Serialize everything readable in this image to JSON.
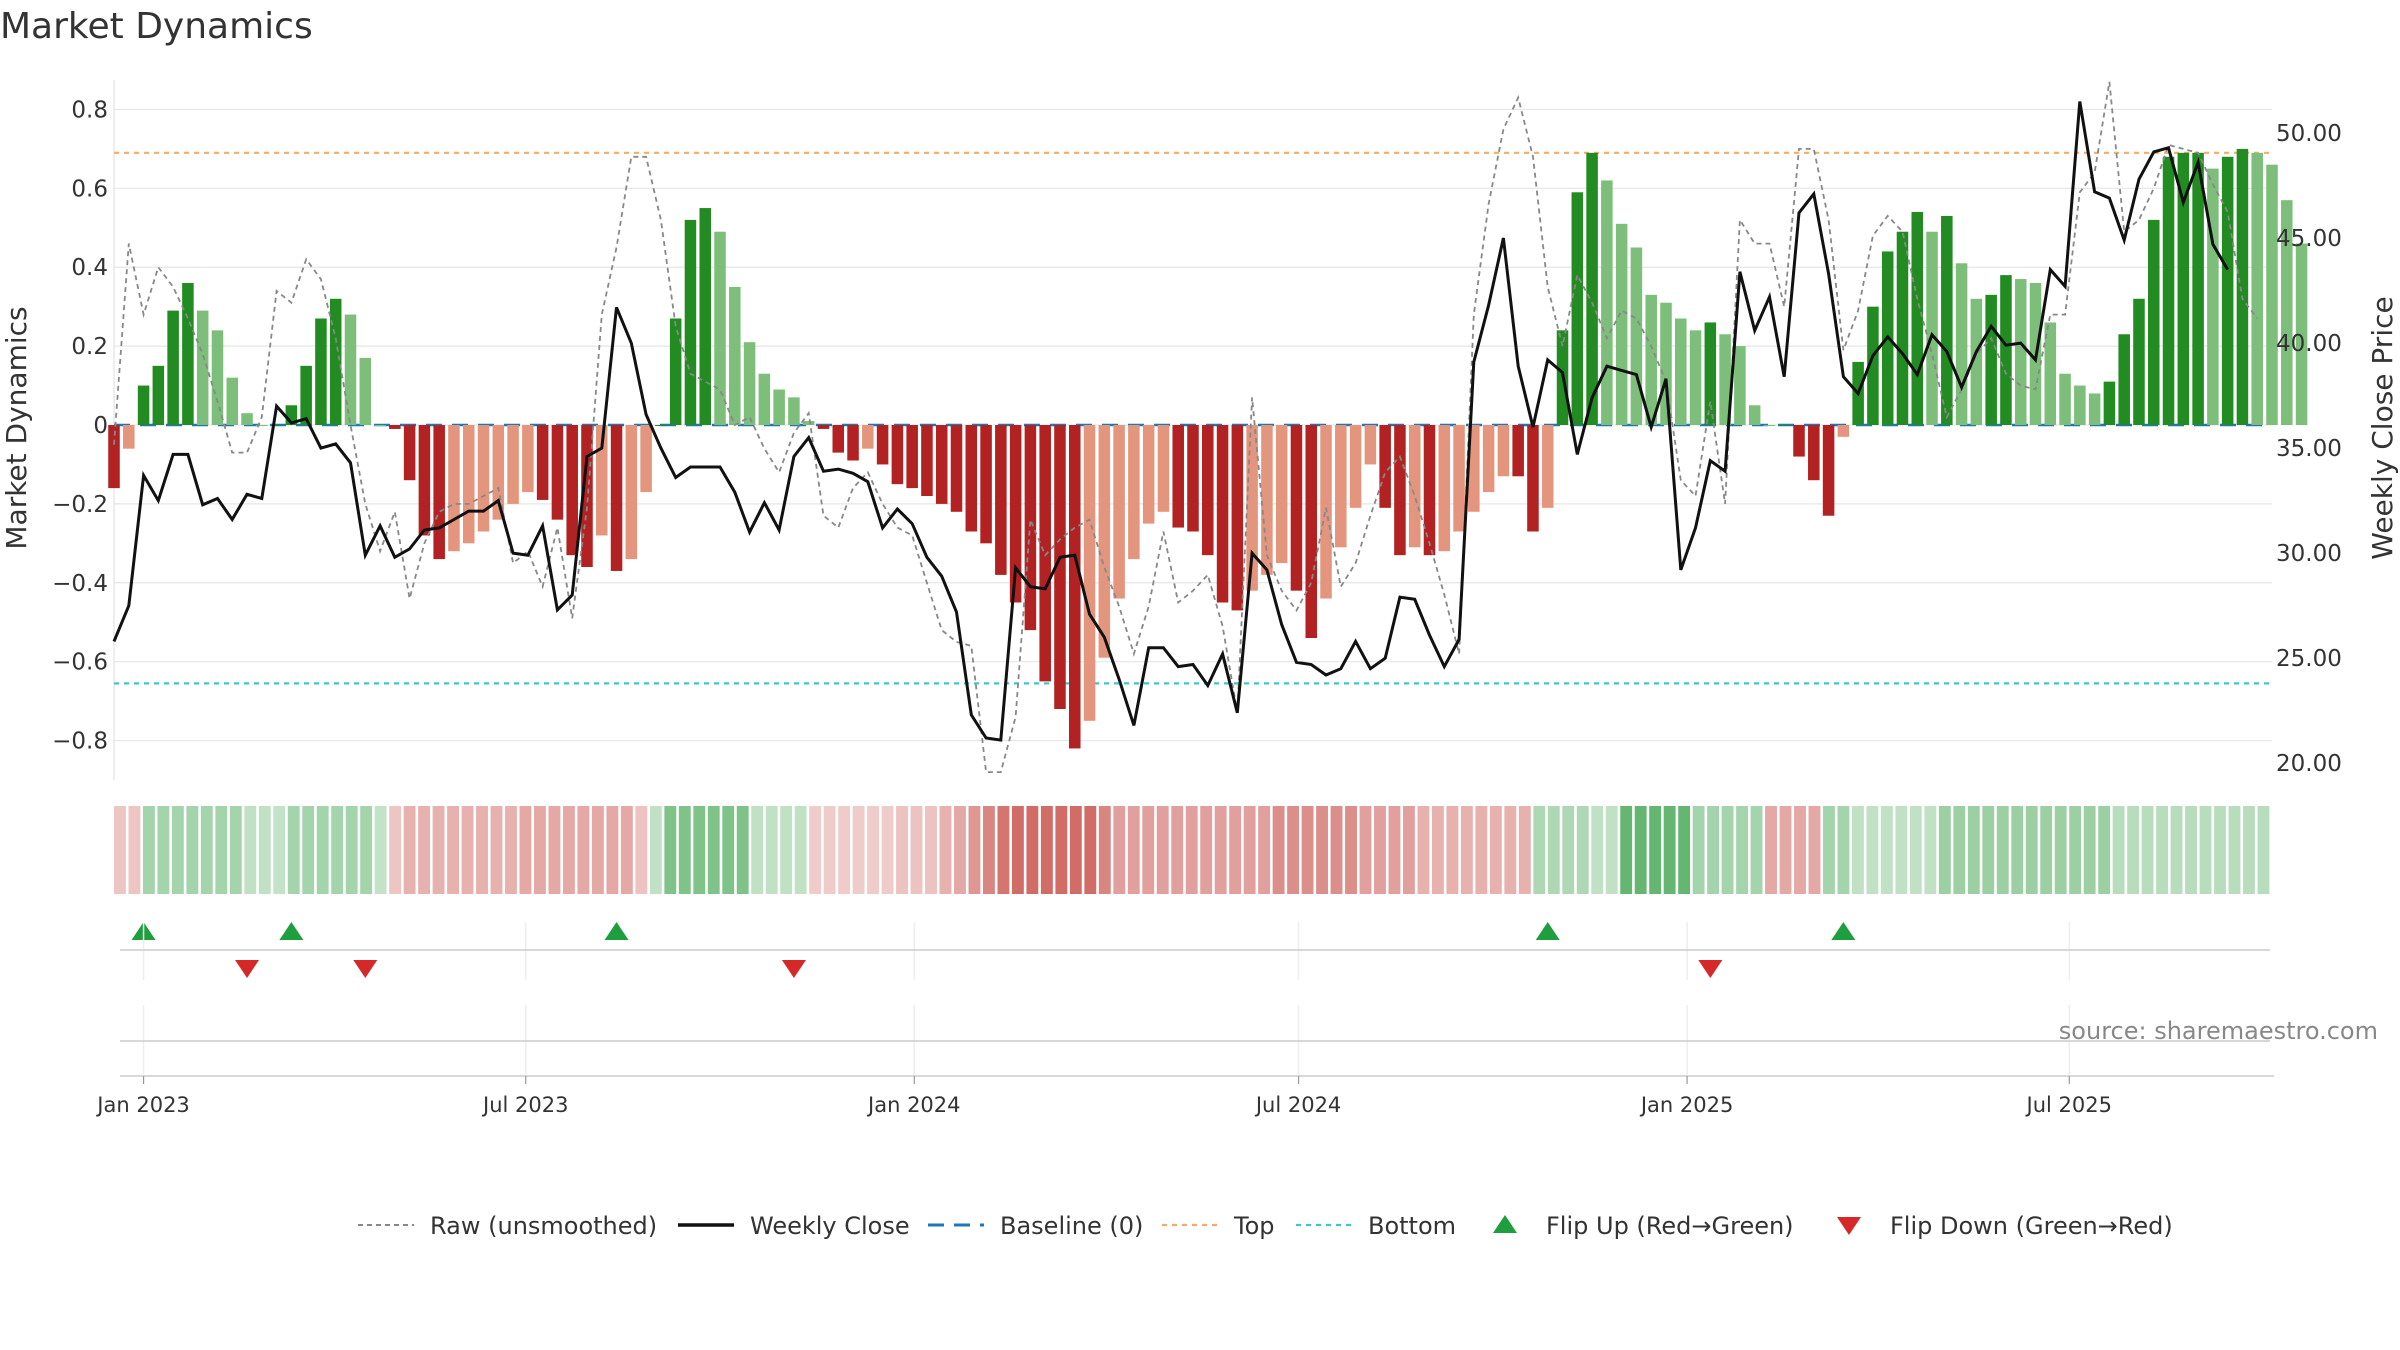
{
  "title": "Market Dynamics",
  "source": "source: sharemaestro.com",
  "chart_data": {
    "type": "bar",
    "title": "Market Dynamics",
    "y_left": {
      "label": "Market Dynamics",
      "range": [
        -0.9,
        0.9
      ],
      "ticks": [
        0.8,
        0.6,
        0.4,
        0.2,
        0,
        -0.2,
        -0.4,
        -0.6,
        -0.8
      ],
      "tick_labels": [
        "0.8",
        "0.6",
        "0.4",
        "0.2",
        "0",
        "−0.2",
        "−0.4",
        "−0.6",
        "−0.8"
      ]
    },
    "y_right": {
      "label": "Weekly Close Price",
      "range": [
        19.2,
        53.0
      ],
      "ticks": [
        50,
        45,
        40,
        35,
        30,
        25,
        20
      ],
      "tick_labels": [
        "50.00",
        "45.00",
        "40.00",
        "35.00",
        "30.00",
        "25.00",
        "20.00"
      ]
    },
    "x_ticks": [
      {
        "date": "2023-01-01",
        "label": "Jan 2023"
      },
      {
        "date": "2023-07-01",
        "label": "Jul 2023"
      },
      {
        "date": "2024-01-01",
        "label": "Jan 2024"
      },
      {
        "date": "2024-07-01",
        "label": "Jul 2024"
      },
      {
        "date": "2025-01-01",
        "label": "Jan 2025"
      },
      {
        "date": "2025-07-01",
        "label": "Jul 2025"
      }
    ],
    "x_range": [
      "2022-12-18",
      "2025-10-05"
    ],
    "start_date": "2022-12-18",
    "week_step_days": 7,
    "dynamics": [
      -0.16,
      -0.06,
      0.1,
      0.15,
      0.29,
      0.36,
      0.29,
      0.24,
      0.12,
      0.03,
      0.0,
      0.0,
      0.05,
      0.15,
      0.27,
      0.32,
      0.28,
      0.17,
      0.0,
      -0.01,
      -0.14,
      -0.28,
      -0.34,
      -0.32,
      -0.3,
      -0.27,
      -0.24,
      -0.2,
      -0.17,
      -0.19,
      -0.24,
      -0.33,
      -0.36,
      -0.28,
      -0.37,
      -0.34,
      -0.17,
      0.0,
      0.27,
      0.52,
      0.55,
      0.49,
      0.35,
      0.21,
      0.13,
      0.09,
      0.07,
      0.01,
      -0.01,
      -0.07,
      -0.09,
      -0.06,
      -0.1,
      -0.15,
      -0.16,
      -0.18,
      -0.2,
      -0.22,
      -0.27,
      -0.3,
      -0.38,
      -0.45,
      -0.52,
      -0.65,
      -0.72,
      -0.82,
      -0.75,
      -0.59,
      -0.44,
      -0.34,
      -0.25,
      -0.22,
      -0.26,
      -0.27,
      -0.33,
      -0.45,
      -0.47,
      -0.42,
      -0.38,
      -0.35,
      -0.42,
      -0.54,
      -0.44,
      -0.31,
      -0.21,
      -0.1,
      -0.21,
      -0.33,
      -0.31,
      -0.33,
      -0.32,
      -0.27,
      -0.22,
      -0.17,
      -0.13,
      -0.13,
      -0.27,
      -0.21,
      0.24,
      0.59,
      0.69,
      0.62,
      0.51,
      0.45,
      0.33,
      0.31,
      0.27,
      0.24,
      0.26,
      0.23,
      0.2,
      0.05,
      0.0,
      0.0,
      -0.08,
      -0.14,
      -0.23,
      -0.03,
      0.16,
      0.3,
      0.44,
      0.49,
      0.54,
      0.49,
      0.53,
      0.41,
      0.32,
      0.33,
      0.38,
      0.37,
      0.36,
      0.26,
      0.13,
      0.1,
      0.08,
      0.11,
      0.23,
      0.32,
      0.52,
      0.68,
      0.69,
      0.69,
      0.65,
      0.68,
      0.7,
      0.69,
      0.66,
      0.57,
      0.46
    ],
    "raw": [
      -0.05,
      0.46,
      0.28,
      0.4,
      0.35,
      0.27,
      0.18,
      0.06,
      -0.07,
      -0.07,
      0.02,
      0.34,
      0.31,
      0.42,
      0.37,
      0.22,
      0.0,
      -0.2,
      -0.32,
      -0.22,
      -0.44,
      -0.3,
      -0.22,
      -0.2,
      -0.2,
      -0.18,
      -0.16,
      -0.35,
      -0.32,
      -0.41,
      -0.26,
      -0.49,
      -0.21,
      0.28,
      0.45,
      0.68,
      0.68,
      0.52,
      0.25,
      0.13,
      0.11,
      0.09,
      0.0,
      0.02,
      -0.06,
      -0.12,
      -0.02,
      0.03,
      -0.23,
      -0.26,
      -0.16,
      -0.12,
      -0.2,
      -0.26,
      -0.28,
      -0.4,
      -0.52,
      -0.55,
      -0.56,
      -0.88,
      -0.88,
      -0.74,
      -0.24,
      -0.33,
      -0.29,
      -0.26,
      -0.24,
      -0.36,
      -0.46,
      -0.58,
      -0.46,
      -0.27,
      -0.45,
      -0.42,
      -0.38,
      -0.51,
      -0.73,
      0.07,
      -0.33,
      -0.42,
      -0.47,
      -0.4,
      -0.21,
      -0.41,
      -0.35,
      -0.23,
      -0.12,
      -0.08,
      -0.18,
      -0.3,
      -0.43,
      -0.58,
      0.28,
      0.56,
      0.75,
      0.83,
      0.68,
      0.35,
      0.2,
      0.38,
      0.31,
      0.22,
      0.29,
      0.27,
      0.2,
      0.11,
      -0.14,
      -0.18,
      0.06,
      -0.2,
      0.52,
      0.46,
      0.46,
      0.3,
      0.7,
      0.7,
      0.52,
      0.19,
      0.29,
      0.48,
      0.53,
      0.49,
      0.32,
      0.18,
      0.02,
      0.09,
      0.18,
      0.22,
      0.13,
      0.1,
      0.09,
      0.28,
      0.28,
      0.59,
      0.64,
      0.87,
      0.49,
      0.52,
      0.6,
      0.71,
      0.7,
      0.69,
      0.61,
      0.54,
      0.32,
      0.27
    ],
    "weekly_close": [
      25.8,
      27.5,
      33.7,
      32.5,
      34.7,
      34.7,
      32.3,
      32.6,
      31.6,
      32.8,
      32.6,
      37.0,
      36.2,
      36.4,
      35.0,
      35.2,
      34.3,
      29.9,
      31.3,
      29.8,
      30.2,
      31.1,
      31.2,
      31.6,
      32.0,
      32.0,
      32.5,
      30.0,
      29.9,
      31.3,
      27.3,
      28.0,
      34.6,
      35.0,
      41.7,
      40.0,
      36.6,
      35.0,
      33.6,
      34.1,
      34.1,
      34.1,
      32.9,
      31.0,
      32.4,
      31.1,
      34.6,
      35.5,
      33.9,
      34.0,
      33.8,
      33.4,
      31.2,
      32.1,
      31.4,
      29.8,
      28.9,
      27.2,
      22.3,
      21.2,
      21.1,
      29.3,
      28.4,
      28.3,
      29.8,
      29.9,
      27.1,
      26.0,
      24.0,
      21.8,
      25.5,
      25.5,
      24.6,
      24.7,
      23.7,
      25.2,
      22.4,
      30.0,
      29.2,
      26.6,
      24.8,
      24.7,
      24.2,
      24.5,
      25.8,
      24.5,
      25.0,
      27.9,
      27.8,
      26.1,
      24.6,
      25.9,
      39.1,
      41.8,
      45.0,
      38.9,
      36.0,
      39.2,
      38.6,
      34.7,
      37.4,
      38.9,
      38.7,
      38.5,
      36.0,
      38.3,
      29.2,
      31.2,
      34.4,
      33.9,
      43.4,
      40.6,
      42.2,
      38.4,
      46.2,
      47.1,
      43.3,
      38.4,
      37.6,
      39.4,
      40.3,
      39.5,
      38.5,
      40.4,
      39.6,
      37.9,
      39.6,
      40.8,
      39.9,
      40.0,
      39.2,
      43.5,
      42.7,
      51.5,
      47.2,
      46.9,
      44.9,
      47.8,
      49.1,
      49.3,
      46.7,
      48.6,
      44.7,
      43.5
    ],
    "top_level": 0.69,
    "bottom_level": -0.655,
    "baseline": 0,
    "regime_strip_alpha": [
      0.33,
      0.33,
      0.5,
      0.5,
      0.5,
      0.5,
      0.5,
      0.5,
      0.5,
      0.35,
      0.35,
      0.33,
      0.5,
      0.5,
      0.5,
      0.5,
      0.5,
      0.5,
      0.33,
      0.33,
      0.45,
      0.45,
      0.45,
      0.45,
      0.45,
      0.45,
      0.45,
      0.45,
      0.5,
      0.5,
      0.5,
      0.5,
      0.5,
      0.5,
      0.5,
      0.5,
      0.35,
      0.35,
      0.7,
      0.7,
      0.7,
      0.7,
      0.7,
      0.7,
      0.35,
      0.35,
      0.35,
      0.35,
      0.3,
      0.3,
      0.3,
      0.3,
      0.3,
      0.3,
      0.35,
      0.35,
      0.35,
      0.45,
      0.5,
      0.6,
      0.7,
      0.8,
      0.85,
      0.85,
      0.85,
      0.85,
      0.85,
      0.85,
      0.7,
      0.55,
      0.55,
      0.55,
      0.55,
      0.55,
      0.55,
      0.55,
      0.55,
      0.55,
      0.55,
      0.55,
      0.65,
      0.65,
      0.65,
      0.65,
      0.65,
      0.65,
      0.55,
      0.55,
      0.55,
      0.55,
      0.45,
      0.45,
      0.45,
      0.45,
      0.45,
      0.45,
      0.45,
      0.45,
      0.45,
      0.45,
      0.45,
      0.45,
      0.35,
      0.35,
      0.85,
      0.85,
      0.85,
      0.85,
      0.85,
      0.5,
      0.5,
      0.5,
      0.5,
      0.5,
      0.5,
      0.5,
      0.5,
      0.5,
      0.5,
      0.5,
      0.35,
      0.35,
      0.35,
      0.35,
      0.35,
      0.35,
      0.55,
      0.55,
      0.55,
      0.55,
      0.55,
      0.55,
      0.55,
      0.55,
      0.55,
      0.55,
      0.55,
      0.55,
      0.4,
      0.4,
      0.4,
      0.4,
      0.4,
      0.4,
      0.4,
      0.4,
      0.4,
      0.4,
      0.4
    ],
    "flips": {
      "up": [
        "2023-01-01",
        "2023-03-12",
        "2023-08-13",
        "2024-10-27",
        "2025-03-16"
      ],
      "down": [
        "2023-02-19",
        "2023-04-16",
        "2023-11-05",
        "2025-01-12"
      ]
    },
    "colors": {
      "strong_green": "#228B22",
      "light_green": "#7dbf7a",
      "strong_red": "#b22222",
      "light_red": "#e3967d",
      "strip_green": "#4aa957",
      "strip_red": "#c9524c",
      "raw_line": "#888888",
      "close_line": "#111111",
      "baseline": "#1f77b4",
      "top": "#f0ad6e",
      "bottom": "#3cc8c8",
      "flip_up": "#1e9e3e",
      "flip_down": "#d62828"
    },
    "legend": [
      {
        "key": "raw",
        "label": "Raw (unsmoothed)"
      },
      {
        "key": "close",
        "label": "Weekly Close"
      },
      {
        "key": "baseline",
        "label": "Baseline (0)"
      },
      {
        "key": "top",
        "label": "Top"
      },
      {
        "key": "bottom",
        "label": "Bottom"
      },
      {
        "key": "flip_up",
        "label": "Flip Up (Red→Green)"
      },
      {
        "key": "flip_down",
        "label": "Flip Down (Green→Red)"
      }
    ]
  }
}
